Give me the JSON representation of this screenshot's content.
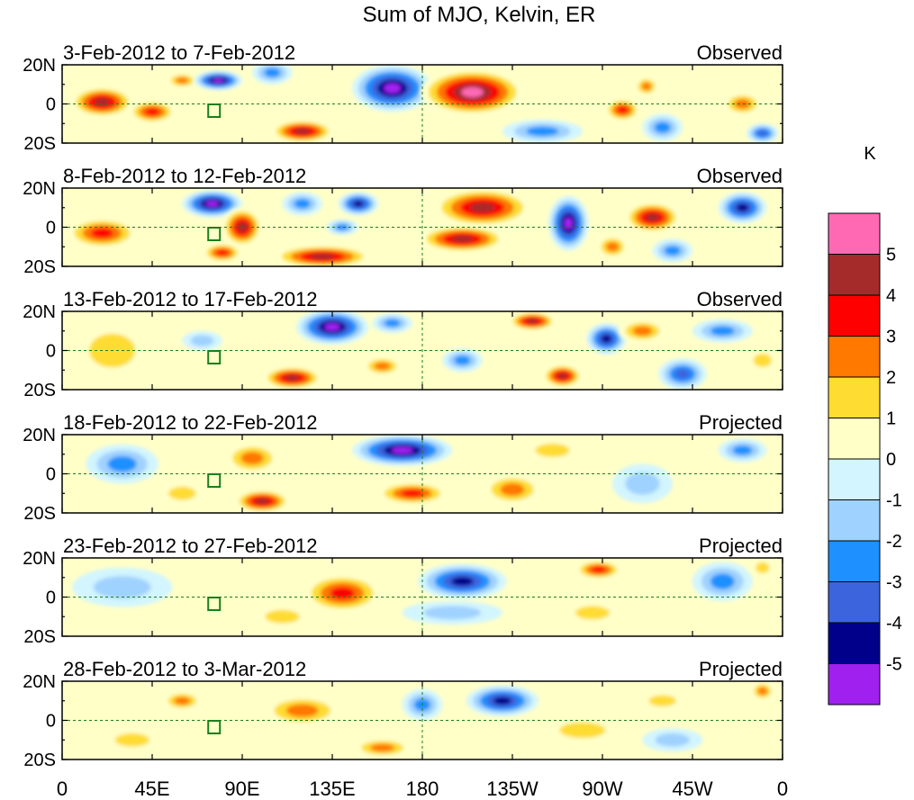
{
  "chart_data": {
    "type": "heatmap",
    "title": "Sum of MJO, Kelvin, ER",
    "colorbar": {
      "unit": "K",
      "colors": [
        "#a020f0",
        "#00008b",
        "#3c64dc",
        "#1e90ff",
        "#a0d2ff",
        "#d2f5ff",
        "#ffffc8",
        "#ffdc32",
        "#ff7800",
        "#ff0000",
        "#a52a2a",
        "#ff69b4"
      ],
      "tick_labels": [
        "-5",
        "-4",
        "-3",
        "-2",
        "-1",
        "0",
        "1",
        "2",
        "3",
        "4",
        "5"
      ]
    },
    "x_ticks": [
      "0",
      "45E",
      "90E",
      "135E",
      "180",
      "135W",
      "90W",
      "45W",
      "0"
    ],
    "y_ticks": [
      "20N",
      "0",
      "20S"
    ],
    "lon_range": [
      0,
      360
    ],
    "lat_range": [
      -20,
      20
    ],
    "panels": [
      {
        "period": "3-Feb-2012 to 7-Feb-2012",
        "status": "Observed",
        "blobs": [
          {
            "lon": 20,
            "lat": 1,
            "rl": 16,
            "rt": 8,
            "v": 4.6
          },
          {
            "lon": 45,
            "lat": -4,
            "rl": 12,
            "rt": 6,
            "v": 4
          },
          {
            "lon": 60,
            "lat": 12,
            "rl": 8,
            "rt": 4,
            "v": 3
          },
          {
            "lon": 78,
            "lat": 12,
            "rl": 12,
            "rt": 5,
            "v": -5.5
          },
          {
            "lon": 105,
            "lat": 16,
            "rl": 10,
            "rt": 6,
            "v": -3
          },
          {
            "lon": 120,
            "lat": -14,
            "rl": 16,
            "rt": 6,
            "v": 4.5
          },
          {
            "lon": 165,
            "lat": 8,
            "rl": 20,
            "rt": 12,
            "v": -5.5
          },
          {
            "lon": 205,
            "lat": 6,
            "rl": 26,
            "rt": 12,
            "v": 5.5
          },
          {
            "lon": 240,
            "lat": -14,
            "rl": 20,
            "rt": 6,
            "v": -2.5
          },
          {
            "lon": 280,
            "lat": -3,
            "rl": 9,
            "rt": 6,
            "v": 3.5
          },
          {
            "lon": 292,
            "lat": 9,
            "rl": 6,
            "rt": 5,
            "v": 3
          },
          {
            "lon": 300,
            "lat": -12,
            "rl": 10,
            "rt": 7,
            "v": -3
          },
          {
            "lon": 340,
            "lat": 0,
            "rl": 10,
            "rt": 6,
            "v": 3
          },
          {
            "lon": 350,
            "lat": -15,
            "rl": 8,
            "rt": 5,
            "v": -3.5
          }
        ]
      },
      {
        "period": "8-Feb-2012 to 12-Feb-2012",
        "status": "Observed",
        "blobs": [
          {
            "lon": 20,
            "lat": -3,
            "rl": 18,
            "rt": 8,
            "v": 4
          },
          {
            "lon": 75,
            "lat": 12,
            "rl": 15,
            "rt": 7,
            "v": -5.5
          },
          {
            "lon": 90,
            "lat": 0,
            "rl": 10,
            "rt": 10,
            "v": 4.5
          },
          {
            "lon": 80,
            "lat": -13,
            "rl": 10,
            "rt": 5,
            "v": 4
          },
          {
            "lon": 130,
            "lat": -15,
            "rl": 25,
            "rt": 6,
            "v": 5
          },
          {
            "lon": 120,
            "lat": 12,
            "rl": 10,
            "rt": 6,
            "v": -3
          },
          {
            "lon": 148,
            "lat": 12,
            "rl": 10,
            "rt": 6,
            "v": -4.5
          },
          {
            "lon": 140,
            "lat": 0,
            "rl": 8,
            "rt": 4,
            "v": -3
          },
          {
            "lon": 210,
            "lat": 10,
            "rl": 25,
            "rt": 10,
            "v": 5
          },
          {
            "lon": 200,
            "lat": -6,
            "rl": 22,
            "rt": 7,
            "v": 5
          },
          {
            "lon": 253,
            "lat": 2,
            "rl": 10,
            "rt": 14,
            "v": -5.5
          },
          {
            "lon": 295,
            "lat": 5,
            "rl": 14,
            "rt": 8,
            "v": 4.5
          },
          {
            "lon": 305,
            "lat": -12,
            "rl": 10,
            "rt": 6,
            "v": -3
          },
          {
            "lon": 340,
            "lat": 10,
            "rl": 12,
            "rt": 8,
            "v": -4.5
          },
          {
            "lon": 275,
            "lat": -10,
            "rl": 8,
            "rt": 6,
            "v": 3
          }
        ]
      },
      {
        "period": "13-Feb-2012 to 17-Feb-2012",
        "status": "Observed",
        "blobs": [
          {
            "lon": 25,
            "lat": 0,
            "rl": 20,
            "rt": 15,
            "v": 1.5
          },
          {
            "lon": 70,
            "lat": 5,
            "rl": 10,
            "rt": 5,
            "v": -2
          },
          {
            "lon": 115,
            "lat": -14,
            "rl": 15,
            "rt": 6,
            "v": 5
          },
          {
            "lon": 135,
            "lat": 12,
            "rl": 18,
            "rt": 9,
            "v": -5.5
          },
          {
            "lon": 160,
            "lat": -8,
            "rl": 10,
            "rt": 5,
            "v": 3
          },
          {
            "lon": 165,
            "lat": 14,
            "rl": 10,
            "rt": 5,
            "v": -3
          },
          {
            "lon": 200,
            "lat": -5,
            "rl": 10,
            "rt": 6,
            "v": -3
          },
          {
            "lon": 235,
            "lat": 15,
            "rl": 12,
            "rt": 5,
            "v": 4.5
          },
          {
            "lon": 250,
            "lat": -13,
            "rl": 10,
            "rt": 6,
            "v": 4.5
          },
          {
            "lon": 272,
            "lat": 6,
            "rl": 10,
            "rt": 8,
            "v": -5
          },
          {
            "lon": 310,
            "lat": -12,
            "rl": 12,
            "rt": 8,
            "v": -4
          },
          {
            "lon": 290,
            "lat": 10,
            "rl": 12,
            "rt": 6,
            "v": 3
          },
          {
            "lon": 330,
            "lat": 10,
            "rl": 15,
            "rt": 6,
            "v": -3
          },
          {
            "lon": 350,
            "lat": -5,
            "rl": 8,
            "rt": 6,
            "v": 2
          }
        ]
      },
      {
        "period": "18-Feb-2012 to 22-Feb-2012",
        "status": "Projected",
        "blobs": [
          {
            "lon": 30,
            "lat": 5,
            "rl": 18,
            "rt": 10,
            "v": -2.5
          },
          {
            "lon": 60,
            "lat": -10,
            "rl": 12,
            "rt": 6,
            "v": 2
          },
          {
            "lon": 100,
            "lat": -14,
            "rl": 14,
            "rt": 6,
            "v": 5
          },
          {
            "lon": 95,
            "lat": 8,
            "rl": 14,
            "rt": 8,
            "v": 2.5
          },
          {
            "lon": 170,
            "lat": 12,
            "rl": 25,
            "rt": 8,
            "v": -5.5
          },
          {
            "lon": 175,
            "lat": -10,
            "rl": 18,
            "rt": 6,
            "v": 4
          },
          {
            "lon": 225,
            "lat": -8,
            "rl": 15,
            "rt": 8,
            "v": 3
          },
          {
            "lon": 245,
            "lat": 12,
            "rl": 15,
            "rt": 6,
            "v": 2
          },
          {
            "lon": 290,
            "lat": -5,
            "rl": 15,
            "rt": 10,
            "v": -2
          },
          {
            "lon": 340,
            "lat": 12,
            "rl": 12,
            "rt": 6,
            "v": -2.5
          }
        ]
      },
      {
        "period": "23-Feb-2012 to 27-Feb-2012",
        "status": "Projected",
        "blobs": [
          {
            "lon": 30,
            "lat": 5,
            "rl": 25,
            "rt": 10,
            "v": -1.5
          },
          {
            "lon": 140,
            "lat": 2,
            "rl": 20,
            "rt": 10,
            "v": 3.5
          },
          {
            "lon": 110,
            "lat": -10,
            "rl": 15,
            "rt": 6,
            "v": 2
          },
          {
            "lon": 200,
            "lat": 8,
            "rl": 22,
            "rt": 9,
            "v": -4.5
          },
          {
            "lon": 195,
            "lat": -8,
            "rl": 25,
            "rt": 6,
            "v": -2
          },
          {
            "lon": 268,
            "lat": 14,
            "rl": 12,
            "rt": 5,
            "v": 3.5
          },
          {
            "lon": 265,
            "lat": -8,
            "rl": 15,
            "rt": 6,
            "v": 1.5
          },
          {
            "lon": 330,
            "lat": 8,
            "rl": 15,
            "rt": 10,
            "v": -2.5
          },
          {
            "lon": 350,
            "lat": 15,
            "rl": 6,
            "rt": 5,
            "v": 2
          }
        ]
      },
      {
        "period": "28-Feb-2012 to 3-Mar-2012",
        "status": "Projected",
        "blobs": [
          {
            "lon": 60,
            "lat": 10,
            "rl": 10,
            "rt": 5,
            "v": 2.5
          },
          {
            "lon": 35,
            "lat": -10,
            "rl": 15,
            "rt": 6,
            "v": 2
          },
          {
            "lon": 120,
            "lat": 5,
            "rl": 20,
            "rt": 8,
            "v": 2.5
          },
          {
            "lon": 160,
            "lat": -14,
            "rl": 15,
            "rt": 5,
            "v": 2.5
          },
          {
            "lon": 180,
            "lat": 8,
            "rl": 10,
            "rt": 8,
            "v": -2.5
          },
          {
            "lon": 220,
            "lat": 10,
            "rl": 18,
            "rt": 8,
            "v": -4.5
          },
          {
            "lon": 260,
            "lat": -5,
            "rl": 20,
            "rt": 7,
            "v": 1.5
          },
          {
            "lon": 305,
            "lat": -10,
            "rl": 15,
            "rt": 6,
            "v": -2
          },
          {
            "lon": 300,
            "lat": 10,
            "rl": 12,
            "rt": 5,
            "v": 2
          },
          {
            "lon": 350,
            "lat": 15,
            "rl": 6,
            "rt": 5,
            "v": 3
          }
        ]
      }
    ]
  }
}
